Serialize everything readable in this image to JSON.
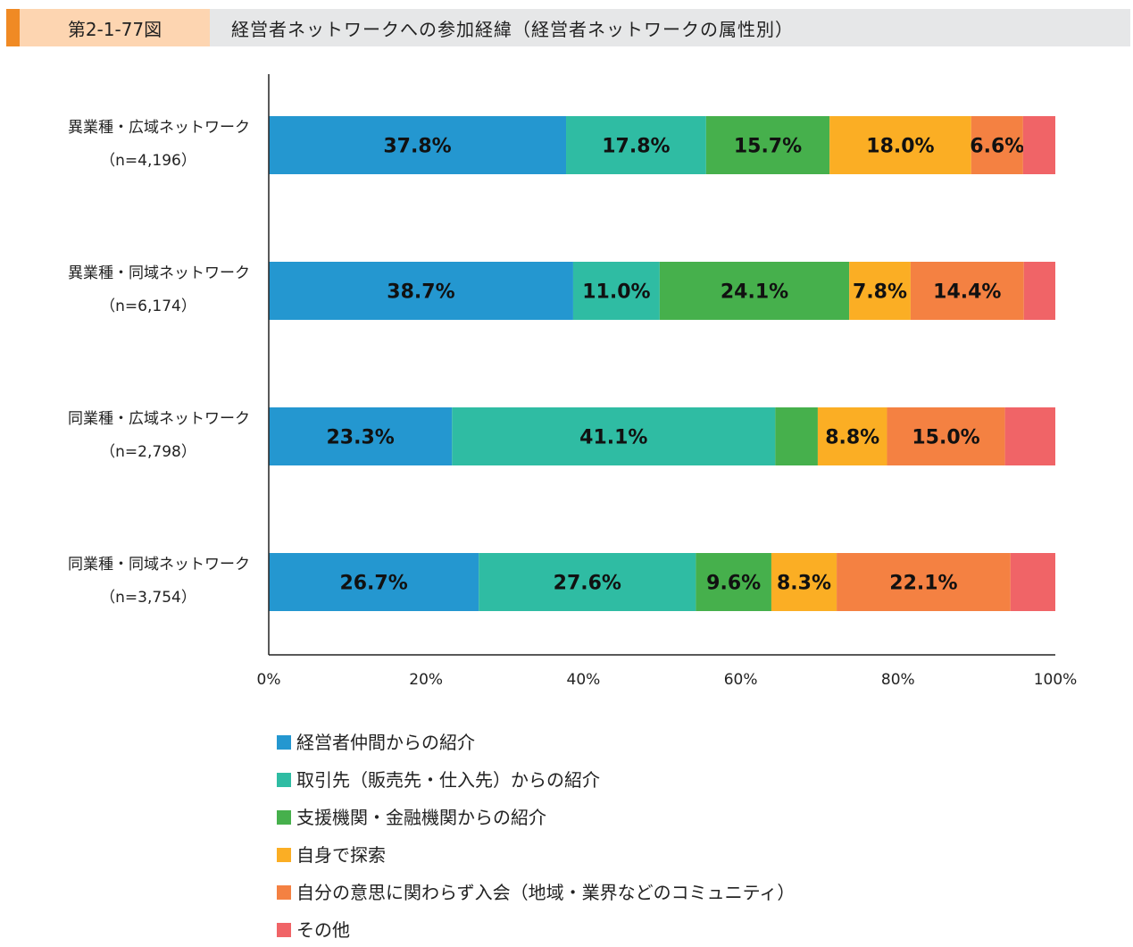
{
  "header": {
    "figure_no": "第2-1-77図",
    "title": "経営者ネットワークへの参加経緯（経営者ネットワークの属性別）"
  },
  "chart_data": {
    "type": "bar",
    "orientation": "horizontal",
    "stacked": true,
    "categories": [
      {
        "name": "異業種・広域ネットワーク",
        "n": "（n=4,196）"
      },
      {
        "name": "異業種・同域ネットワーク",
        "n": "（n=6,174）"
      },
      {
        "name": "同業種・広域ネットワーク",
        "n": "（n=2,798）"
      },
      {
        "name": "同業種・同域ネットワーク",
        "n": "（n=3,754）"
      }
    ],
    "series": [
      {
        "name": "経営者仲間からの紹介",
        "color": "#2497d0",
        "values": [
          37.8,
          38.7,
          23.3,
          26.7
        ],
        "labeled": [
          true,
          true,
          true,
          true
        ]
      },
      {
        "name": "取引先（販売先・仕入先）からの紹介",
        "color": "#2fbca3",
        "values": [
          17.8,
          11.0,
          41.1,
          27.6
        ],
        "labeled": [
          true,
          true,
          true,
          true
        ]
      },
      {
        "name": "支援機関・金融機関からの紹介",
        "color": "#46b04c",
        "values": [
          15.7,
          24.1,
          5.4,
          9.6
        ],
        "labeled": [
          true,
          true,
          false,
          true
        ]
      },
      {
        "name": "自身で探索",
        "color": "#fbae24",
        "values": [
          18.0,
          7.8,
          8.8,
          8.3
        ],
        "labeled": [
          true,
          true,
          true,
          true
        ]
      },
      {
        "name": "自分の意思に関わらず入会（地域・業界などのコミュニティ）",
        "color": "#f48142",
        "values": [
          6.6,
          14.4,
          15.0,
          22.1
        ],
        "labeled": [
          true,
          true,
          true,
          true
        ]
      },
      {
        "name": "その他",
        "color": "#f06467",
        "values": [
          4.1,
          4.0,
          6.4,
          5.7
        ],
        "labeled": [
          false,
          false,
          false,
          false
        ]
      }
    ],
    "xlim": [
      0,
      100
    ],
    "xticks": [
      "0%",
      "20%",
      "40%",
      "60%",
      "80%",
      "100%"
    ],
    "legend_position": "bottom",
    "grid": false
  }
}
